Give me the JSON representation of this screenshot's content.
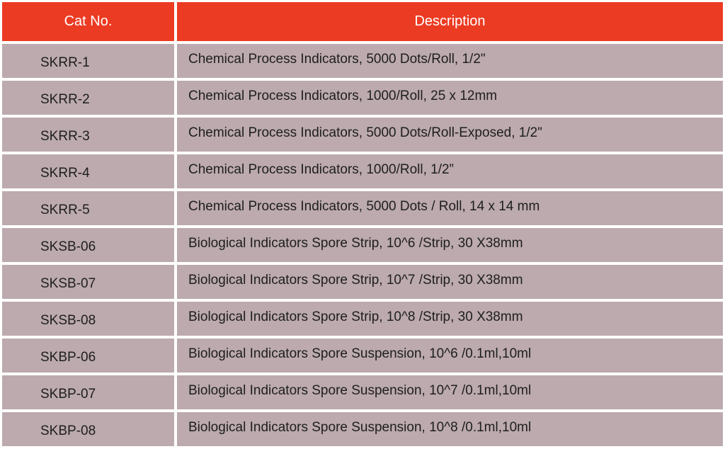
{
  "table": {
    "headers": {
      "cat_no": "Cat No.",
      "description": "Description"
    },
    "rows": [
      {
        "cat_no": "SKRR-1",
        "description": "Chemical Process Indicators, 5000 Dots/Roll, 1/2\""
      },
      {
        "cat_no": "SKRR-2",
        "description": "Chemical Process Indicators, 1000/Roll, 25 x 12mm"
      },
      {
        "cat_no": "SKRR-3",
        "description": "Chemical Process Indicators, 5000 Dots/Roll-Exposed, 1/2\""
      },
      {
        "cat_no": "SKRR-4",
        "description": "Chemical Process Indicators, 1000/Roll, 1/2”"
      },
      {
        "cat_no": "SKRR-5",
        "description": "Chemical Process Indicators, 5000 Dots / Roll, 14 x 14 mm"
      },
      {
        "cat_no": "SKSB-06",
        "description": "Biological Indicators Spore Strip,  10^6 /Strip, 30 X38mm"
      },
      {
        "cat_no": "SKSB-07",
        "description": "Biological Indicators Spore Strip,  10^7 /Strip, 30 X38mm"
      },
      {
        "cat_no": "SKSB-08",
        "description": "Biological Indicators Spore Strip,  10^8 /Strip, 30 X38mm"
      },
      {
        "cat_no": "SKBP-06",
        "description": "Biological Indicators Spore Suspension, 10^6 /0.1ml,10ml"
      },
      {
        "cat_no": "SKBP-07",
        "description": "Biological Indicators Spore Suspension, 10^7 /0.1ml,10ml"
      },
      {
        "cat_no": "SKBP-08",
        "description": "Biological Indicators Spore Suspension, 10^8 /0.1ml,10ml"
      }
    ]
  },
  "colors": {
    "header_bg": "#ec3b23",
    "header_text": "#ffffff",
    "row_bg": "#bcaaae",
    "row_text": "#1e1e1e"
  }
}
